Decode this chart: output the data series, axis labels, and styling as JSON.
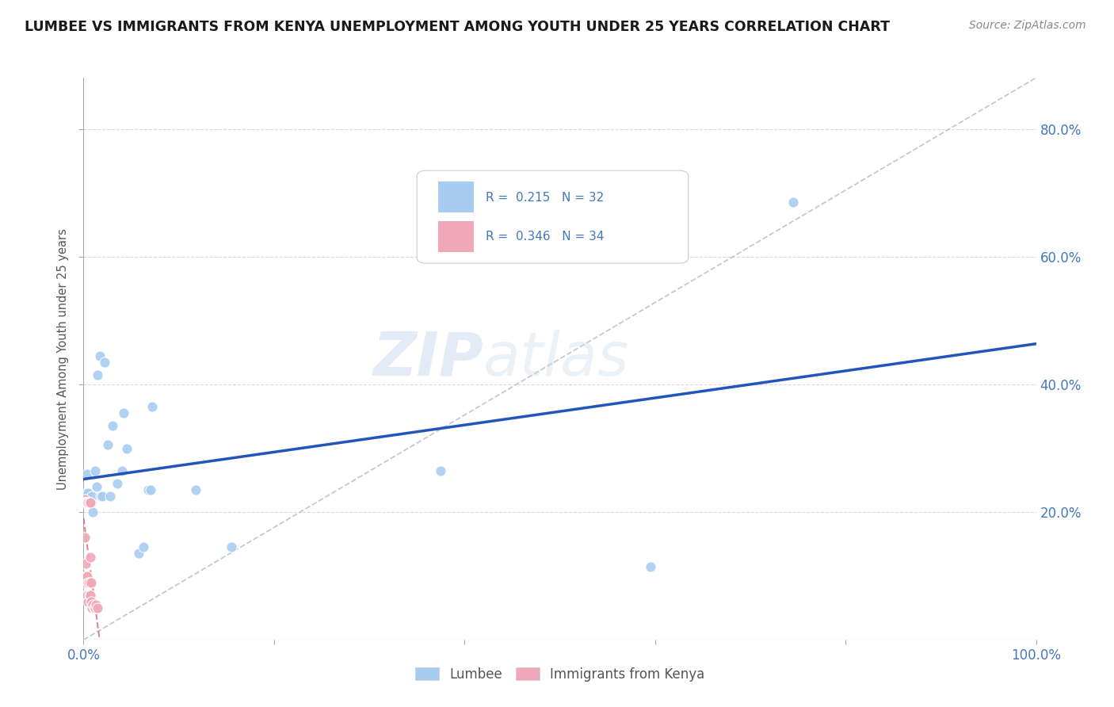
{
  "title": "LUMBEE VS IMMIGRANTS FROM KENYA UNEMPLOYMENT AMONG YOUTH UNDER 25 YEARS CORRELATION CHART",
  "source": "Source: ZipAtlas.com",
  "ylabel": "Unemployment Among Youth under 25 years",
  "watermark_zip": "ZIP",
  "watermark_atlas": "atlas",
  "legend_line1": "R =  0.215   N = 32",
  "legend_line2": "R =  0.346   N = 34",
  "r_lumbee": 0.215,
  "n_lumbee": 32,
  "r_kenya": 0.346,
  "n_kenya": 34,
  "color_lumbee": "#A8CCF0",
  "color_kenya": "#F0A8B8",
  "color_lumbee_line": "#2255BB",
  "color_kenya_line": "#D06070",
  "color_diag": "#C0C0D0",
  "lumbee_x": [
    0.003,
    0.004,
    0.005,
    0.006,
    0.007,
    0.008,
    0.009,
    0.01,
    0.012,
    0.014,
    0.015,
    0.017,
    0.018,
    0.02,
    0.022,
    0.025,
    0.028,
    0.03,
    0.035,
    0.04,
    0.042,
    0.045,
    0.058,
    0.063,
    0.068,
    0.07,
    0.072,
    0.118,
    0.155,
    0.375,
    0.595,
    0.745
  ],
  "lumbee_y": [
    0.23,
    0.26,
    0.23,
    0.215,
    0.215,
    0.215,
    0.225,
    0.2,
    0.265,
    0.24,
    0.415,
    0.445,
    0.225,
    0.225,
    0.435,
    0.305,
    0.225,
    0.335,
    0.245,
    0.265,
    0.355,
    0.3,
    0.135,
    0.145,
    0.235,
    0.235,
    0.365,
    0.235,
    0.145,
    0.265,
    0.115,
    0.685
  ],
  "kenya_x": [
    0.001,
    0.001,
    0.001,
    0.001,
    0.002,
    0.002,
    0.002,
    0.002,
    0.003,
    0.003,
    0.003,
    0.004,
    0.004,
    0.004,
    0.004,
    0.005,
    0.005,
    0.005,
    0.005,
    0.006,
    0.006,
    0.006,
    0.007,
    0.007,
    0.007,
    0.008,
    0.008,
    0.009,
    0.009,
    0.01,
    0.011,
    0.012,
    0.013,
    0.015
  ],
  "kenya_y": [
    0.22,
    0.215,
    0.16,
    0.09,
    0.215,
    0.215,
    0.12,
    0.07,
    0.215,
    0.215,
    0.1,
    0.215,
    0.215,
    0.1,
    0.07,
    0.215,
    0.215,
    0.09,
    0.06,
    0.215,
    0.09,
    0.07,
    0.215,
    0.13,
    0.07,
    0.09,
    0.06,
    0.05,
    0.05,
    0.055,
    0.05,
    0.05,
    0.055,
    0.05
  ],
  "ytick_vals": [
    0.2,
    0.4,
    0.6,
    0.8
  ],
  "ytick_labels": [
    "20.0%",
    "40.0%",
    "60.0%",
    "80.0%"
  ],
  "xtick_vals": [
    0.0,
    0.2,
    0.4,
    0.6,
    0.8,
    1.0
  ],
  "xtick_labels_show": {
    "0.0": "0.0%",
    "1.0": "100.0%"
  },
  "ymax": 0.88,
  "xmax": 1.0,
  "background_color": "#FFFFFF",
  "grid_color": "#D8D8E8",
  "title_color": "#1A1A1A",
  "axis_tick_color": "#4477BB",
  "ylabel_color": "#555555"
}
